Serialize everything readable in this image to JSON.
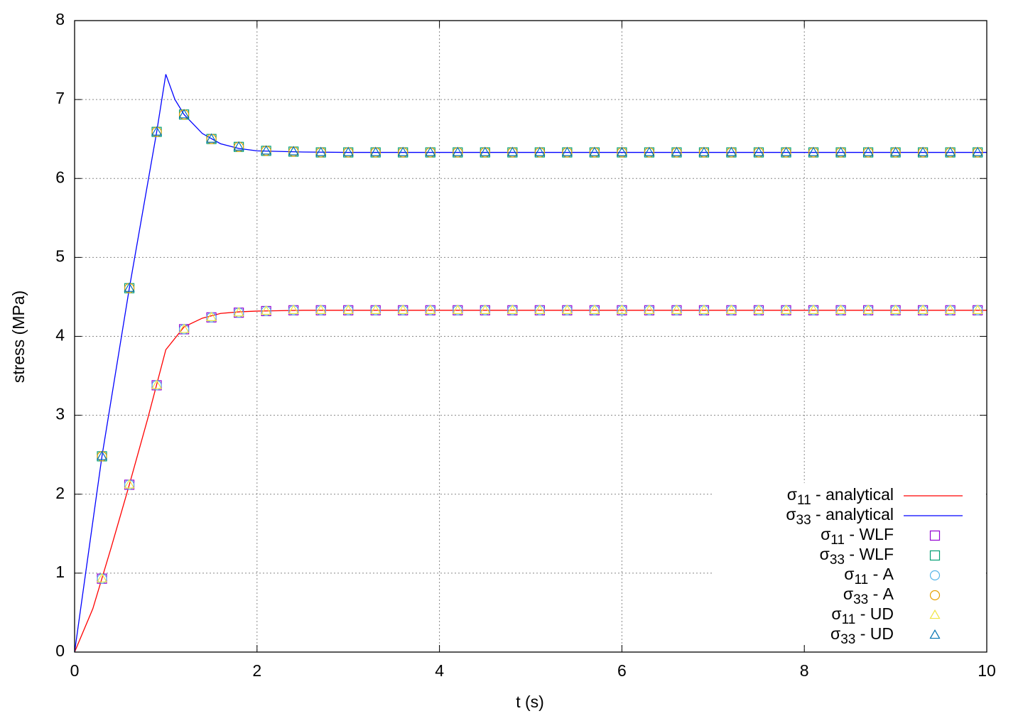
{
  "chart_data": {
    "type": "line",
    "xlabel": "t (s)",
    "ylabel": "stress (MPa)",
    "xlim": [
      0,
      10
    ],
    "ylim": [
      0,
      8
    ],
    "xticks": [
      0,
      2,
      4,
      6,
      8,
      10
    ],
    "yticks": [
      0,
      1,
      2,
      3,
      4,
      5,
      6,
      7,
      8
    ],
    "grid": true,
    "legend": "bottom-right",
    "series": [
      {
        "name": "σ11 - analytical",
        "color": "#ff0000",
        "style": "line",
        "x": [
          0,
          0.2,
          0.4,
          0.6,
          0.8,
          1.0,
          1.2,
          1.4,
          1.6,
          1.8,
          2.0,
          2.5,
          3.0,
          10
        ],
        "values": [
          0,
          0.55,
          1.32,
          2.12,
          2.95,
          3.83,
          4.12,
          4.23,
          4.29,
          4.31,
          4.32,
          4.33,
          4.33,
          4.33
        ]
      },
      {
        "name": "σ33 - analytical",
        "color": "#0000ff",
        "style": "line",
        "x": [
          0,
          0.3,
          0.6,
          0.9,
          1.0,
          1.1,
          1.2,
          1.4,
          1.6,
          1.8,
          2.0,
          2.5,
          3.0,
          10
        ],
        "values": [
          0,
          2.48,
          4.61,
          6.59,
          7.32,
          7.0,
          6.81,
          6.57,
          6.44,
          6.38,
          6.35,
          6.335,
          6.33,
          6.33
        ]
      },
      {
        "name": "σ11 - WLF",
        "color": "#9400d3",
        "style": "square",
        "x": [
          0.3,
          0.6,
          0.9,
          1.2,
          1.5,
          1.8,
          2.1,
          2.4,
          2.7,
          3.0,
          3.3,
          3.6,
          3.9,
          4.2,
          4.5,
          4.8,
          5.1,
          5.4,
          5.7,
          6.0,
          6.3,
          6.6,
          6.9,
          7.2,
          7.5,
          7.8,
          8.1,
          8.4,
          8.7,
          9.0,
          9.3,
          9.6,
          9.9
        ],
        "values": [
          0.93,
          2.12,
          3.38,
          4.09,
          4.24,
          4.3,
          4.32,
          4.33,
          4.33,
          4.33,
          4.33,
          4.33,
          4.33,
          4.33,
          4.33,
          4.33,
          4.33,
          4.33,
          4.33,
          4.33,
          4.33,
          4.33,
          4.33,
          4.33,
          4.33,
          4.33,
          4.33,
          4.33,
          4.33,
          4.33,
          4.33,
          4.33,
          4.33
        ]
      },
      {
        "name": "σ33 - WLF",
        "color": "#009e73",
        "style": "square",
        "x": [
          0.3,
          0.6,
          0.9,
          1.2,
          1.5,
          1.8,
          2.1,
          2.4,
          2.7,
          3.0,
          3.3,
          3.6,
          3.9,
          4.2,
          4.5,
          4.8,
          5.1,
          5.4,
          5.7,
          6.0,
          6.3,
          6.6,
          6.9,
          7.2,
          7.5,
          7.8,
          8.1,
          8.4,
          8.7,
          9.0,
          9.3,
          9.6,
          9.9
        ],
        "values": [
          2.48,
          4.61,
          6.59,
          6.81,
          6.5,
          6.4,
          6.35,
          6.34,
          6.33,
          6.33,
          6.33,
          6.33,
          6.33,
          6.33,
          6.33,
          6.33,
          6.33,
          6.33,
          6.33,
          6.33,
          6.33,
          6.33,
          6.33,
          6.33,
          6.33,
          6.33,
          6.33,
          6.33,
          6.33,
          6.33,
          6.33,
          6.33,
          6.33
        ]
      },
      {
        "name": "σ11 - A",
        "color": "#56b4e9",
        "style": "circle",
        "x": [
          0.3,
          0.6,
          0.9,
          1.2,
          1.5,
          1.8,
          2.1,
          2.4,
          2.7,
          3.0,
          3.3,
          3.6,
          3.9,
          4.2,
          4.5,
          4.8,
          5.1,
          5.4,
          5.7,
          6.0,
          6.3,
          6.6,
          6.9,
          7.2,
          7.5,
          7.8,
          8.1,
          8.4,
          8.7,
          9.0,
          9.3,
          9.6,
          9.9
        ],
        "values": [
          0.93,
          2.12,
          3.38,
          4.09,
          4.24,
          4.3,
          4.32,
          4.33,
          4.33,
          4.33,
          4.33,
          4.33,
          4.33,
          4.33,
          4.33,
          4.33,
          4.33,
          4.33,
          4.33,
          4.33,
          4.33,
          4.33,
          4.33,
          4.33,
          4.33,
          4.33,
          4.33,
          4.33,
          4.33,
          4.33,
          4.33,
          4.33,
          4.33
        ]
      },
      {
        "name": "σ33 - A",
        "color": "#e69f00",
        "style": "circle",
        "x": [
          0.3,
          0.6,
          0.9,
          1.2,
          1.5,
          1.8,
          2.1,
          2.4,
          2.7,
          3.0,
          3.3,
          3.6,
          3.9,
          4.2,
          4.5,
          4.8,
          5.1,
          5.4,
          5.7,
          6.0,
          6.3,
          6.6,
          6.9,
          7.2,
          7.5,
          7.8,
          8.1,
          8.4,
          8.7,
          9.0,
          9.3,
          9.6,
          9.9
        ],
        "values": [
          2.48,
          4.61,
          6.59,
          6.81,
          6.5,
          6.4,
          6.35,
          6.34,
          6.33,
          6.33,
          6.33,
          6.33,
          6.33,
          6.33,
          6.33,
          6.33,
          6.33,
          6.33,
          6.33,
          6.33,
          6.33,
          6.33,
          6.33,
          6.33,
          6.33,
          6.33,
          6.33,
          6.33,
          6.33,
          6.33,
          6.33,
          6.33,
          6.33
        ]
      },
      {
        "name": "σ11 - UD",
        "color": "#f0e442",
        "style": "triangle",
        "x": [
          0.3,
          0.6,
          0.9,
          1.2,
          1.5,
          1.8,
          2.1,
          2.4,
          2.7,
          3.0,
          3.3,
          3.6,
          3.9,
          4.2,
          4.5,
          4.8,
          5.1,
          5.4,
          5.7,
          6.0,
          6.3,
          6.6,
          6.9,
          7.2,
          7.5,
          7.8,
          8.1,
          8.4,
          8.7,
          9.0,
          9.3,
          9.6,
          9.9
        ],
        "values": [
          0.93,
          2.12,
          3.38,
          4.09,
          4.24,
          4.3,
          4.32,
          4.33,
          4.33,
          4.33,
          4.33,
          4.33,
          4.33,
          4.33,
          4.33,
          4.33,
          4.33,
          4.33,
          4.33,
          4.33,
          4.33,
          4.33,
          4.33,
          4.33,
          4.33,
          4.33,
          4.33,
          4.33,
          4.33,
          4.33,
          4.33,
          4.33,
          4.33
        ]
      },
      {
        "name": "σ33 - UD",
        "color": "#0072b2",
        "style": "triangle",
        "x": [
          0.3,
          0.6,
          0.9,
          1.2,
          1.5,
          1.8,
          2.1,
          2.4,
          2.7,
          3.0,
          3.3,
          3.6,
          3.9,
          4.2,
          4.5,
          4.8,
          5.1,
          5.4,
          5.7,
          6.0,
          6.3,
          6.6,
          6.9,
          7.2,
          7.5,
          7.8,
          8.1,
          8.4,
          8.7,
          9.0,
          9.3,
          9.6,
          9.9
        ],
        "values": [
          2.48,
          4.61,
          6.59,
          6.81,
          6.5,
          6.4,
          6.35,
          6.34,
          6.33,
          6.33,
          6.33,
          6.33,
          6.33,
          6.33,
          6.33,
          6.33,
          6.33,
          6.33,
          6.33,
          6.33,
          6.33,
          6.33,
          6.33,
          6.33,
          6.33,
          6.33,
          6.33,
          6.33,
          6.33,
          6.33,
          6.33,
          6.33,
          6.33
        ]
      }
    ]
  }
}
